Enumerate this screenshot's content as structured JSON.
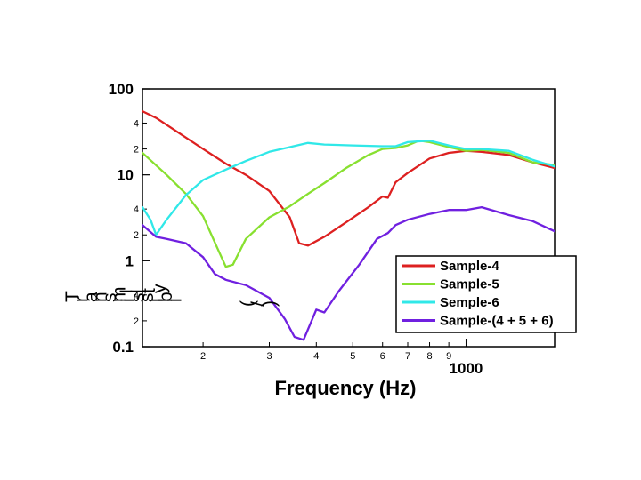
{
  "chart_data": {
    "type": "line",
    "title": "",
    "xlabel": "Frequency (Hz)",
    "ylabel": "Transmissibility (/)",
    "xscale": "log",
    "yscale": "log",
    "xlim": [
      138,
      1720
    ],
    "ylim": [
      0.1,
      100
    ],
    "grid": false,
    "legend_position": "bottom-right",
    "x_tick_labels": [
      {
        "value": 200,
        "label": "2"
      },
      {
        "value": 300,
        "label": "3"
      },
      {
        "value": 400,
        "label": "4"
      },
      {
        "value": 500,
        "label": "5"
      },
      {
        "value": 600,
        "label": "6"
      },
      {
        "value": 700,
        "label": "7"
      },
      {
        "value": 800,
        "label": "8"
      },
      {
        "value": 900,
        "label": "9"
      },
      {
        "value": 1000,
        "label": "1000"
      }
    ],
    "y_major_ticks": [
      {
        "value": 100,
        "label": "100"
      },
      {
        "value": 10,
        "label": "10"
      },
      {
        "value": 1,
        "label": "1"
      },
      {
        "value": 0.1,
        "label": "0.1"
      }
    ],
    "y_minor_ticks": [
      {
        "value": 40,
        "label": "4"
      },
      {
        "value": 20,
        "label": "2"
      },
      {
        "value": 4,
        "label": "4"
      },
      {
        "value": 2,
        "label": "2"
      },
      {
        "value": 0.4,
        "label": "4"
      },
      {
        "value": 0.2,
        "label": "2"
      }
    ],
    "series": [
      {
        "name": "Sample-4",
        "color": "#dd2020",
        "x": [
          138,
          150,
          170,
          200,
          230,
          260,
          300,
          340,
          360,
          380,
          420,
          480,
          550,
          600,
          620,
          650,
          700,
          800,
          900,
          1000,
          1100,
          1300,
          1500,
          1720
        ],
        "y": [
          55,
          46,
          32,
          20,
          13.5,
          10,
          6.5,
          3.2,
          1.6,
          1.5,
          1.9,
          2.8,
          4.2,
          5.6,
          5.4,
          8.2,
          10.5,
          15.5,
          18,
          19,
          18.5,
          17,
          14,
          12
        ]
      },
      {
        "name": "Sample-5",
        "color": "#88e030",
        "x": [
          138,
          160,
          180,
          200,
          220,
          230,
          240,
          260,
          300,
          340,
          380,
          420,
          480,
          550,
          600,
          650,
          700,
          750,
          800,
          900,
          1000,
          1100,
          1300,
          1500,
          1720
        ],
        "y": [
          18,
          10,
          6,
          3.3,
          1.3,
          0.85,
          0.9,
          1.8,
          3.2,
          4.3,
          6,
          8,
          12,
          17,
          20,
          20.5,
          22,
          25,
          24,
          21,
          19,
          19.5,
          18,
          14,
          13
        ]
      },
      {
        "name": "Semple-6",
        "color": "#30e8e8",
        "x": [
          138,
          145,
          150,
          160,
          180,
          200,
          230,
          260,
          300,
          340,
          380,
          420,
          500,
          600,
          650,
          700,
          800,
          900,
          1000,
          1100,
          1300,
          1500,
          1720
        ],
        "y": [
          4.2,
          3.0,
          2.0,
          3.0,
          5.8,
          8.7,
          11.5,
          14.5,
          18.5,
          21,
          23.5,
          22.5,
          22,
          21.5,
          21.5,
          24,
          25,
          22,
          20,
          20,
          19,
          15,
          12.5
        ]
      },
      {
        "name": "Sample-(4 + 5 + 6)",
        "color": "#7020e0",
        "x": [
          138,
          150,
          160,
          180,
          200,
          215,
          230,
          260,
          300,
          330,
          350,
          370,
          400,
          420,
          460,
          520,
          580,
          620,
          650,
          700,
          800,
          900,
          1000,
          1100,
          1300,
          1500,
          1720
        ],
        "y": [
          2.6,
          1.9,
          1.8,
          1.6,
          1.1,
          0.7,
          0.6,
          0.52,
          0.37,
          0.21,
          0.13,
          0.12,
          0.27,
          0.25,
          0.45,
          0.9,
          1.8,
          2.1,
          2.6,
          3.0,
          3.5,
          3.9,
          3.9,
          4.2,
          3.4,
          2.9,
          2.2
        ]
      }
    ]
  },
  "ylabel_glyphs": [
    "T",
    "r",
    "a",
    "n",
    "s",
    "m",
    "i",
    "s",
    "s",
    "i",
    "b",
    "i",
    "l",
    "i",
    "t",
    "y",
    " ",
    "(",
    "/",
    ")"
  ]
}
